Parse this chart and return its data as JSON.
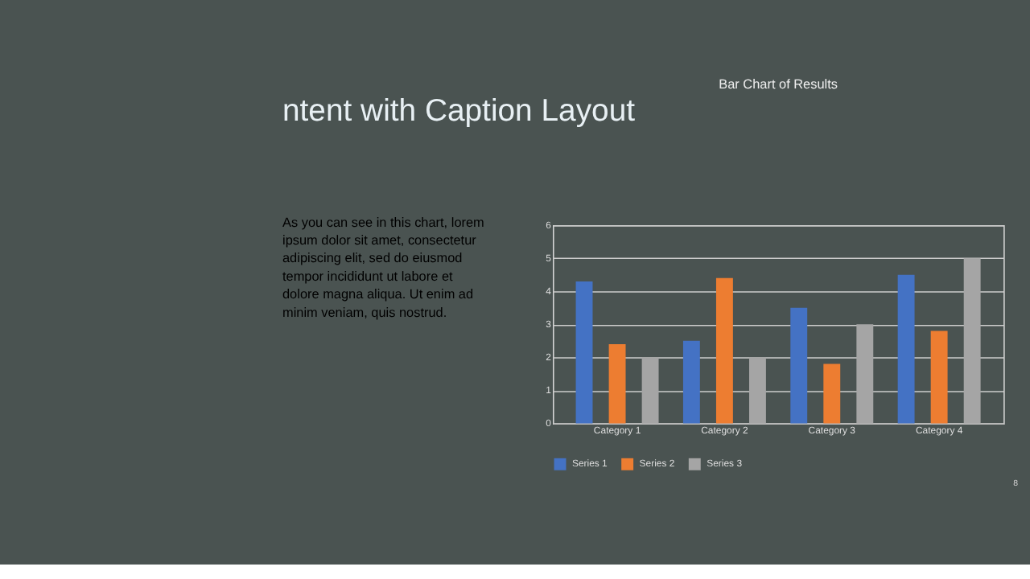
{
  "chart_data": {
    "type": "bar",
    "title": "Bar Chart of Results",
    "categories": [
      "Category 1",
      "Category 2",
      "Category 3",
      "Category 4"
    ],
    "series": [
      {
        "name": "Series 1",
        "color": "#4472c4",
        "values": [
          4.3,
          2.5,
          3.5,
          4.5
        ]
      },
      {
        "name": "Series 2",
        "color": "#ed7d31",
        "values": [
          2.4,
          4.4,
          1.8,
          2.8
        ]
      },
      {
        "name": "Series 3",
        "color": "#a5a5a5",
        "values": [
          2,
          2,
          3,
          5
        ]
      }
    ],
    "ylim": [
      0,
      6
    ],
    "yticks": [
      0,
      1,
      2,
      3,
      4,
      5,
      6
    ],
    "grid": "y",
    "legend": "bottom",
    "annotations": [
      "ntent with Caption Layout",
      "As you can see in this chart, lorem ipsum dolor sit amet, consectetur adipiscing elit, sed do eiusmod tempor incididunt ut labore et dolore magna aliqua. Ut enim ad minim veniam, quis nostrud.",
      "8"
    ]
  }
}
